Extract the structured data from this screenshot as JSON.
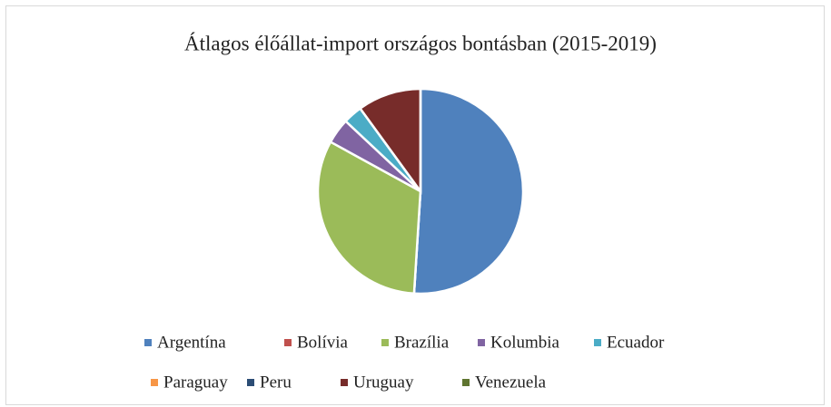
{
  "chart_data": {
    "type": "pie",
    "title": "Átlagos élőállat-import országos bontásban (2015-2019)",
    "categories": [
      "Argentína",
      "Bolívia",
      "Brazília",
      "Kolumbia",
      "Ecuador",
      "Paraguay",
      "Peru",
      "Uruguay",
      "Venezuela"
    ],
    "values": [
      51,
      0,
      32,
      4,
      3,
      0,
      0,
      10,
      0
    ],
    "colors": [
      "#4f81bd",
      "#c0504d",
      "#9bbb59",
      "#8064a2",
      "#4bacc6",
      "#f79646",
      "#2c4d75",
      "#772c2a",
      "#5f7530"
    ],
    "legend": "bottom"
  }
}
